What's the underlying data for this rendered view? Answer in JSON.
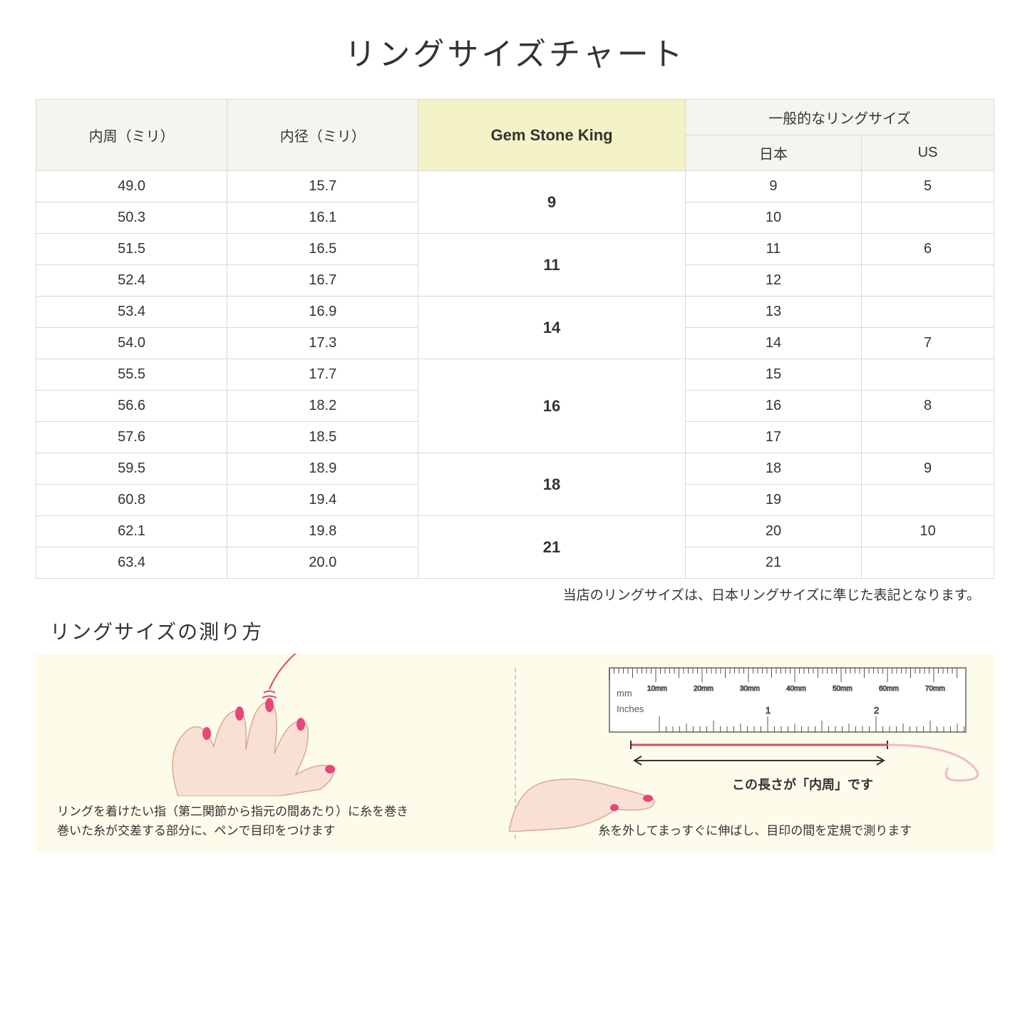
{
  "title": "リングサイズチャート",
  "table": {
    "headers": {
      "circumference": "内周（ミリ）",
      "diameter": "内径（ミリ）",
      "gsk": "Gem Stone King",
      "general": "一般的なリングサイズ",
      "japan": "日本",
      "us": "US"
    },
    "highlight_color": "#f4f3c8",
    "header_bg": "#f5f5f0",
    "border_color": "#d8d8d8",
    "groups": [
      {
        "gsk": "9",
        "rows": [
          {
            "c": "49.0",
            "d": "15.7",
            "jp": "9",
            "us": "5"
          },
          {
            "c": "50.3",
            "d": "16.1",
            "jp": "10",
            "us": ""
          }
        ]
      },
      {
        "gsk": "11",
        "rows": [
          {
            "c": "51.5",
            "d": "16.5",
            "jp": "11",
            "us": "6"
          },
          {
            "c": "52.4",
            "d": "16.7",
            "jp": "12",
            "us": ""
          }
        ]
      },
      {
        "gsk": "14",
        "rows": [
          {
            "c": "53.4",
            "d": "16.9",
            "jp": "13",
            "us": ""
          },
          {
            "c": "54.0",
            "d": "17.3",
            "jp": "14",
            "us": "7"
          }
        ]
      },
      {
        "gsk": "16",
        "rows": [
          {
            "c": "55.5",
            "d": "17.7",
            "jp": "15",
            "us": ""
          },
          {
            "c": "56.6",
            "d": "18.2",
            "jp": "16",
            "us": "8"
          },
          {
            "c": "57.6",
            "d": "18.5",
            "jp": "17",
            "us": ""
          }
        ]
      },
      {
        "gsk": "18",
        "rows": [
          {
            "c": "59.5",
            "d": "18.9",
            "jp": "18",
            "us": "9"
          },
          {
            "c": "60.8",
            "d": "19.4",
            "jp": "19",
            "us": ""
          }
        ]
      },
      {
        "gsk": "21",
        "rows": [
          {
            "c": "62.1",
            "d": "19.8",
            "jp": "20",
            "us": "10"
          },
          {
            "c": "63.4",
            "d": "20.0",
            "jp": "21",
            "us": ""
          }
        ]
      }
    ]
  },
  "note": "当店のリングサイズは、日本リングサイズに準じた表記となります。",
  "howto": {
    "title": "リングサイズの測り方",
    "panel_bg": "#fdfbea",
    "left_caption_1": "リングを着けたい指（第二関節から指元の間あたり）に糸を巻き",
    "left_caption_2": "巻いた糸が交差する部分に、ペンで目印をつけます",
    "right_arrow_label": "この長さが「内周」です",
    "right_caption": "糸を外してまっすぐに伸ばし、目印の間を定規で測ります",
    "ruler": {
      "mm_label": "mm",
      "inches_label": "Inches",
      "mm_ticks": [
        "10mm",
        "20mm",
        "30mm",
        "40mm",
        "50mm",
        "60mm",
        "70mm"
      ],
      "inch_ticks": [
        "1",
        "2"
      ]
    },
    "hand_skin": "#f9e0d4",
    "hand_outline": "#d9a88f",
    "nail_color": "#e8467a",
    "thread_color": "#d94a6a"
  }
}
